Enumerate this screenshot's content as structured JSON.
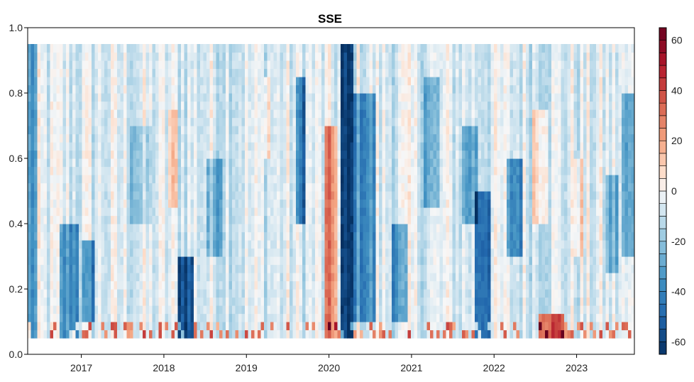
{
  "chart_data": {
    "type": "heatmap",
    "title": "SSE",
    "xlabel": "",
    "ylabel": "",
    "x_range": [
      2016.35,
      2023.7
    ],
    "x_ticks": [
      2017,
      2018,
      2019,
      2020,
      2021,
      2022,
      2023
    ],
    "x_tick_labels": [
      "2017",
      "2018",
      "2019",
      "2020",
      "2021",
      "2022",
      "2023"
    ],
    "ylim": [
      0.0,
      1.0
    ],
    "y_ticks": [
      0.0,
      0.2,
      0.4,
      0.6,
      0.8,
      1.0
    ],
    "y_tick_labels": [
      "0.0",
      "0.2",
      "0.4",
      "0.6",
      "0.8",
      "1.0"
    ],
    "data_y_extent": [
      0.05,
      0.95
    ],
    "colorbar": {
      "range": [
        -65,
        65
      ],
      "step": 5,
      "ticks": [
        -60,
        -40,
        -20,
        0,
        20,
        40,
        60
      ],
      "tick_labels": [
        "-60",
        "-40",
        "-20",
        "0",
        "20",
        "40",
        "60"
      ],
      "low_color": "#053061",
      "mid_color": "#f7f7f7",
      "high_color": "#67001f"
    },
    "features": [
      {
        "x0": 2016.35,
        "x1": 2016.45,
        "y0": 0.05,
        "y1": 0.95,
        "value": -28
      },
      {
        "x0": 2016.75,
        "x1": 2016.95,
        "y0": 0.05,
        "y1": 0.4,
        "value": -30
      },
      {
        "x0": 2017.0,
        "x1": 2017.15,
        "y0": 0.1,
        "y1": 0.35,
        "value": -34
      },
      {
        "x0": 2017.6,
        "x1": 2017.85,
        "y0": 0.4,
        "y1": 0.7,
        "value": -12
      },
      {
        "x0": 2018.05,
        "x1": 2018.15,
        "y0": 0.45,
        "y1": 0.75,
        "value": 14
      },
      {
        "x0": 2018.15,
        "x1": 2018.35,
        "y0": 0.05,
        "y1": 0.3,
        "value": -48
      },
      {
        "x0": 2018.5,
        "x1": 2018.7,
        "y0": 0.3,
        "y1": 0.6,
        "value": -20
      },
      {
        "x0": 2019.2,
        "x1": 2019.3,
        "y0": 0.6,
        "y1": 0.85,
        "value": 14
      },
      {
        "x0": 2019.6,
        "x1": 2019.7,
        "y0": 0.4,
        "y1": 0.85,
        "value": -38
      },
      {
        "x0": 2019.95,
        "x1": 2020.1,
        "y0": 0.05,
        "y1": 0.7,
        "value": 30
      },
      {
        "x0": 2020.15,
        "x1": 2020.3,
        "y0": 0.05,
        "y1": 0.95,
        "value": -60
      },
      {
        "x0": 2020.3,
        "x1": 2020.55,
        "y0": 0.1,
        "y1": 0.8,
        "value": -30
      },
      {
        "x0": 2020.75,
        "x1": 2020.95,
        "y0": 0.1,
        "y1": 0.4,
        "value": -28
      },
      {
        "x0": 2021.15,
        "x1": 2021.35,
        "y0": 0.45,
        "y1": 0.85,
        "value": -22
      },
      {
        "x0": 2021.6,
        "x1": 2021.8,
        "y0": 0.4,
        "y1": 0.7,
        "value": -24
      },
      {
        "x0": 2021.75,
        "x1": 2021.95,
        "y0": 0.05,
        "y1": 0.5,
        "value": -36
      },
      {
        "x0": 2022.15,
        "x1": 2022.35,
        "y0": 0.3,
        "y1": 0.6,
        "value": -30
      },
      {
        "x0": 2022.45,
        "x1": 2022.65,
        "y0": 0.4,
        "y1": 0.75,
        "value": 16
      },
      {
        "x0": 2022.55,
        "x1": 2022.85,
        "y0": 0.05,
        "y1": 0.13,
        "value": 45
      },
      {
        "x0": 2022.95,
        "x1": 2023.1,
        "y0": 0.3,
        "y1": 0.6,
        "value": 12
      },
      {
        "x0": 2023.35,
        "x1": 2023.5,
        "y0": 0.25,
        "y1": 0.55,
        "value": -22
      },
      {
        "x0": 2023.55,
        "x1": 2023.7,
        "y0": 0.3,
        "y1": 0.8,
        "value": -26
      }
    ]
  }
}
